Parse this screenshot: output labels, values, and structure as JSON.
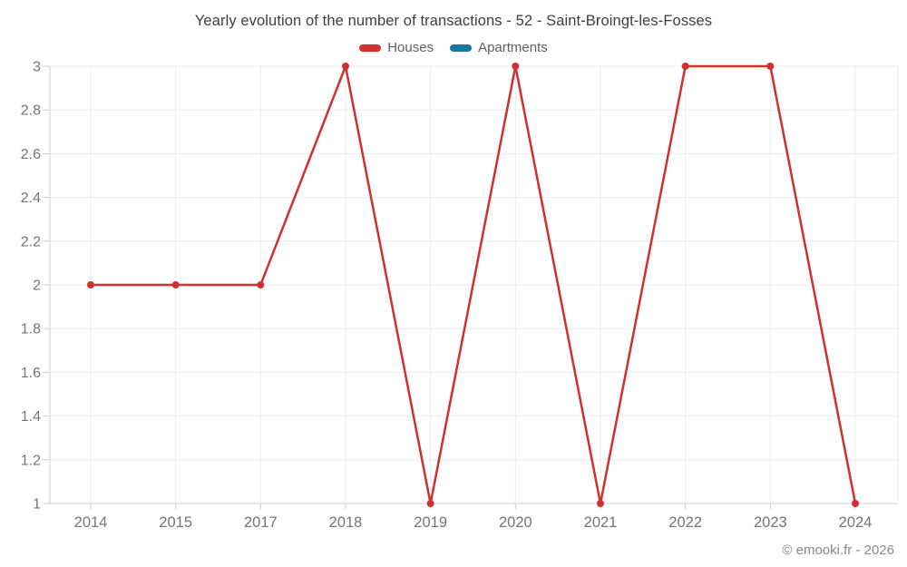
{
  "header": {
    "title": "Yearly evolution of the number of transactions - 52 - Saint-Broingt-les-Fosses"
  },
  "chart_data": {
    "type": "line",
    "title": "Yearly evolution of the number of transactions - 52 - Saint-Broingt-les-Fosses",
    "categories": [
      "2014",
      "2015",
      "2017",
      "2018",
      "2019",
      "2020",
      "2021",
      "2022",
      "2023",
      "2024"
    ],
    "series": [
      {
        "name": "Houses",
        "color": "#d32f2f",
        "values": [
          2,
          2,
          2,
          3,
          1,
          3,
          1,
          3,
          3,
          1
        ]
      },
      {
        "name": "Apartments",
        "color": "#1a75a3",
        "values": []
      }
    ],
    "xlabel": "",
    "ylabel": "",
    "ylim": [
      1,
      3
    ],
    "yticks": [
      1,
      1.2,
      1.4,
      1.6,
      1.8,
      2,
      2.2,
      2.4,
      2.6,
      2.8,
      3
    ],
    "grid": true,
    "legend_position": "top",
    "colors": {
      "grid_line": "#ececec",
      "axis_line": "#cfcfcf",
      "tick_label": "#757575",
      "marker_radius": 4,
      "line_width": 2.5
    }
  },
  "footer": {
    "copyright": "© emooki.fr - 2026"
  }
}
